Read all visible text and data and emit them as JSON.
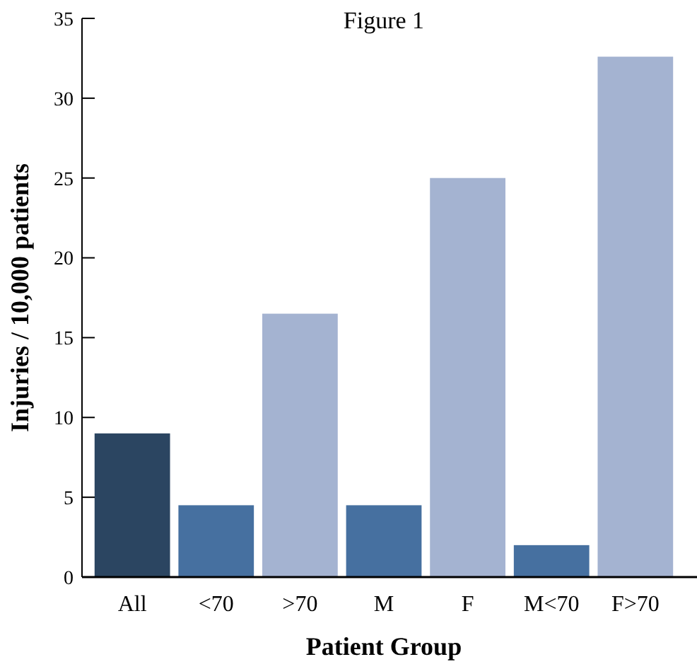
{
  "chart_data": {
    "type": "bar",
    "title": "Figure 1",
    "xlabel": "Patient Group",
    "ylabel": "Injuries / 10,000 patients",
    "categories": [
      "All",
      "<70",
      ">70",
      "M",
      "F",
      "M<70",
      "F>70"
    ],
    "values": [
      9.0,
      4.5,
      16.5,
      4.5,
      25.0,
      2.0,
      32.6
    ],
    "colors": [
      "#2b4561",
      "#4670a0",
      "#a4b3d1",
      "#4670a0",
      "#a4b3d1",
      "#4670a0",
      "#a4b3d1"
    ],
    "ylim": [
      0,
      35
    ],
    "yticks": [
      0,
      5,
      10,
      15,
      20,
      25,
      30,
      35
    ],
    "grid": false
  }
}
